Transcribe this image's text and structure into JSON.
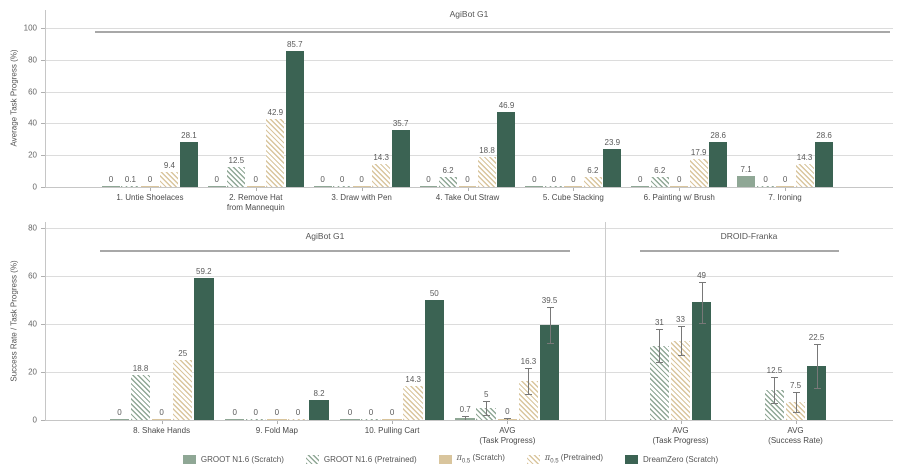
{
  "figure": {
    "background": "#ffffff",
    "grid_color": "#dcdcdc",
    "axis_color": "#c6c6c6",
    "error_bar_color": "#787878",
    "section_line_color": "#a8a8a8"
  },
  "series": [
    {
      "id": "groot-n16-scratch",
      "label_pre": "GROOT N1.6 (Scratch)",
      "label_sub": "",
      "label_post": "",
      "color": "#8FA795",
      "hatch": false
    },
    {
      "id": "groot-n16-pretrained",
      "label_pre": "GROOT N1.6 (Pretrained)",
      "label_sub": "",
      "label_post": "",
      "color": "#8FA795",
      "hatch": true
    },
    {
      "id": "pi05-scratch",
      "label_pre": "π",
      "label_sub": "0.5",
      "label_post": " (Scratch)",
      "color": "#D9C59D",
      "hatch": false
    },
    {
      "id": "pi05-pretrained",
      "label_pre": "π",
      "label_sub": "0.5",
      "label_post": " (Pretrained)",
      "color": "#D9C59D",
      "hatch": true
    },
    {
      "id": "dreamzero-scratch",
      "label_pre": "DreamZero (Scratch)",
      "label_sub": "",
      "label_post": "",
      "color": "#3B6353",
      "hatch": false
    }
  ],
  "chart_data": [
    {
      "type": "bar",
      "ylabel": "Average Task Progress (%)",
      "yticks": [
        0,
        20,
        40,
        60,
        80,
        100
      ],
      "ylim": [
        0,
        111
      ],
      "grid": true,
      "legend_position": "bottom",
      "sections": [
        {
          "title": "AgiBot G1",
          "groups": [
            {
              "label": "1. Untie Shoelaces",
              "series": [
                0,
                1,
                2,
                3,
                4
              ],
              "values": [
                0,
                0.1,
                0,
                9.4,
                28.1
              ]
            },
            {
              "label": "2. Remove Hat\nfrom Mannequin",
              "series": [
                0,
                1,
                2,
                3,
                4
              ],
              "values": [
                0,
                12.5,
                0,
                42.9,
                85.7
              ]
            },
            {
              "label": "3. Draw with Pen",
              "series": [
                0,
                1,
                2,
                3,
                4
              ],
              "values": [
                0,
                0,
                0,
                14.3,
                35.7
              ]
            },
            {
              "label": "4. Take Out Straw",
              "series": [
                0,
                1,
                2,
                3,
                4
              ],
              "values": [
                0,
                6.2,
                0,
                18.8,
                46.9
              ]
            },
            {
              "label": "5. Cube Stacking",
              "series": [
                0,
                1,
                2,
                3,
                4
              ],
              "values": [
                0,
                0,
                0,
                6.2,
                23.9
              ]
            },
            {
              "label": "6. Painting w/ Brush",
              "series": [
                0,
                1,
                2,
                3,
                4
              ],
              "values": [
                0,
                6.2,
                0,
                17.9,
                28.6
              ]
            },
            {
              "label": "7. Ironing",
              "series": [
                0,
                1,
                2,
                3,
                4
              ],
              "values": [
                7.1,
                0,
                0,
                14.3,
                28.6
              ]
            }
          ]
        }
      ]
    },
    {
      "type": "bar",
      "ylabel": "Success Rate / Task Progress (%)",
      "yticks": [
        0,
        20,
        40,
        60,
        80
      ],
      "ylim": [
        0,
        82.5
      ],
      "grid": true,
      "sections": [
        {
          "title": "AgiBot G1",
          "groups": [
            {
              "label": "8. Shake Hands",
              "series": [
                0,
                1,
                2,
                3,
                4
              ],
              "values": [
                0,
                18.8,
                0,
                25,
                59.2
              ]
            },
            {
              "label": "9. Fold Map",
              "series": [
                0,
                1,
                2,
                3,
                4
              ],
              "values": [
                0,
                0,
                0,
                0,
                8.2
              ]
            },
            {
              "label": "10. Pulling Cart",
              "series": [
                0,
                1,
                2,
                3,
                4
              ],
              "values": [
                0,
                0,
                0,
                14.3,
                50
              ]
            },
            {
              "label": "AVG\n(Task Progress)",
              "series": [
                0,
                1,
                2,
                3,
                4
              ],
              "values": [
                0.7,
                5,
                0,
                16.3,
                39.5
              ],
              "errors": [
                0.8,
                3,
                0.8,
                5.5,
                7.5
              ]
            }
          ]
        },
        {
          "title": "DROID-Franka",
          "groups": [
            {
              "label": "AVG\n(Task Progress)",
              "series": [
                1,
                3,
                4
              ],
              "values": [
                31,
                33,
                49
              ],
              "errors": [
                7,
                6,
                8.5
              ]
            },
            {
              "label": "AVG\n(Success Rate)",
              "series": [
                1,
                3,
                4
              ],
              "values": [
                12.5,
                7.5,
                22.5
              ],
              "errors": [
                5.5,
                4,
                9
              ]
            }
          ]
        }
      ]
    }
  ]
}
